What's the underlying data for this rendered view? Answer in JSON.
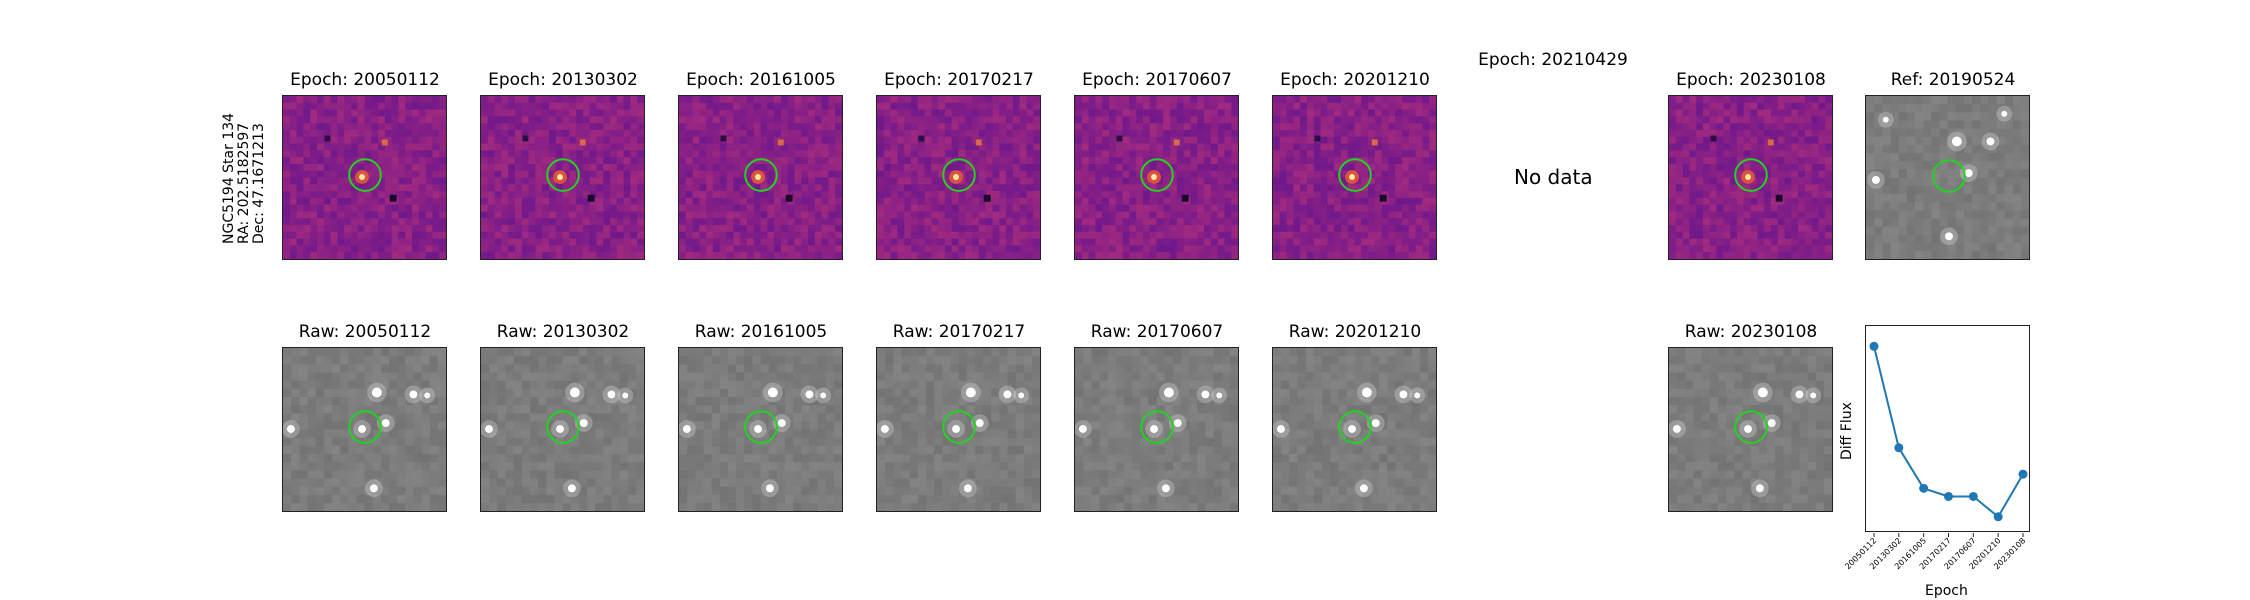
{
  "star": {
    "name": "NGC5194 Star 134",
    "ra": "RA: 202.5182597",
    "dec": "Dec: 47.1671213"
  },
  "colors": {
    "diff_bg": "#7b2a87",
    "raw_bg": "#7a7a7a",
    "circle": "#22d322",
    "line": "#1f77b4"
  },
  "diff_panels": [
    {
      "title": "Epoch: 20050112",
      "has_data": true
    },
    {
      "title": "Epoch: 20130302",
      "has_data": true
    },
    {
      "title": "Epoch: 20161005",
      "has_data": true
    },
    {
      "title": "Epoch: 20170217",
      "has_data": true
    },
    {
      "title": "Epoch: 20170607",
      "has_data": true
    },
    {
      "title": "Epoch: 20201210",
      "has_data": true
    },
    {
      "title": "Epoch: 20210429",
      "has_data": false,
      "message": "No data"
    },
    {
      "title": "Epoch: 20230108",
      "has_data": true
    }
  ],
  "ref_panel": {
    "title": "Ref: 20190524"
  },
  "raw_panels": [
    {
      "title": "Raw: 20050112",
      "has_data": true
    },
    {
      "title": "Raw: 20130302",
      "has_data": true
    },
    {
      "title": "Raw: 20161005",
      "has_data": true
    },
    {
      "title": "Raw: 20170217",
      "has_data": true
    },
    {
      "title": "Raw: 20170607",
      "has_data": true
    },
    {
      "title": "Raw: 20201210",
      "has_data": true
    },
    {
      "title": "",
      "has_data": false
    },
    {
      "title": "Raw: 20230108",
      "has_data": true
    }
  ],
  "chart_data": {
    "type": "line",
    "title": "",
    "xlabel": "Epoch",
    "ylabel": "Diff Flux",
    "categories": [
      "20050112",
      "20130302",
      "20161005",
      "20170217",
      "20170607",
      "20201210",
      "20230108"
    ],
    "values": [
      1.0,
      0.5,
      0.3,
      0.26,
      0.26,
      0.16,
      0.37
    ],
    "ylim": [
      0.08,
      1.1
    ],
    "grid": false,
    "marker": "circle"
  }
}
